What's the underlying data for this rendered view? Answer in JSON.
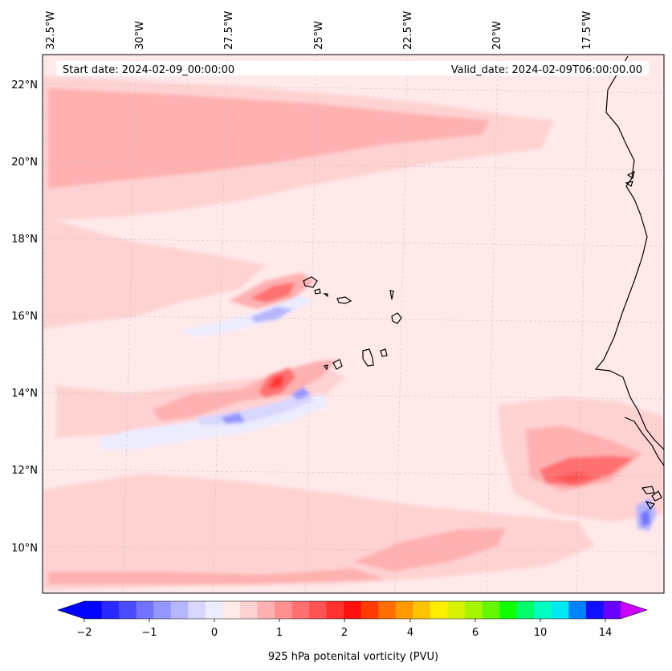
{
  "map": {
    "start_date_text": "Start date: 2024-02-09_00:00:00",
    "valid_date_text": "Valid_date: 2024-02-09T06:00:00.00",
    "lon_labels": [
      "32.5°W",
      "30°W",
      "27.5°W",
      "25°W",
      "22.5°W",
      "20°W",
      "17.5°W"
    ],
    "lat_labels": [
      "22°N",
      "20°N",
      "18°N",
      "16°N",
      "14°N",
      "12°N",
      "10°N"
    ],
    "background_color": "#ffe9e9",
    "coast_color": "#000000",
    "grid_color": "#bdbdbd"
  },
  "colorbar": {
    "label": "925 hPa potenital vorticity (PVU)",
    "tick_labels": [
      "−2",
      "−1",
      "0",
      "1",
      "2",
      "4",
      "6",
      "10",
      "14"
    ],
    "colors": [
      "#0000ff",
      "#2828ff",
      "#4c4cff",
      "#7272ff",
      "#9696ff",
      "#b6b6ff",
      "#d6d6ff",
      "#ececff",
      "#ffe9e9",
      "#ffd2d2",
      "#ffb0b0",
      "#ff9090",
      "#ff7070",
      "#ff5252",
      "#ff3232",
      "#ff1010",
      "#ff3c00",
      "#ff6e00",
      "#ff9a00",
      "#ffc400",
      "#ffee00",
      "#d6f200",
      "#a6f500",
      "#66f700",
      "#10ff00",
      "#00ff6a",
      "#00ffc0",
      "#00e8f0",
      "#0082ff",
      "#1010ff",
      "#6600ff"
    ],
    "extend_low_color": "#0000ff",
    "extend_high_color": "#cc00ff"
  }
}
